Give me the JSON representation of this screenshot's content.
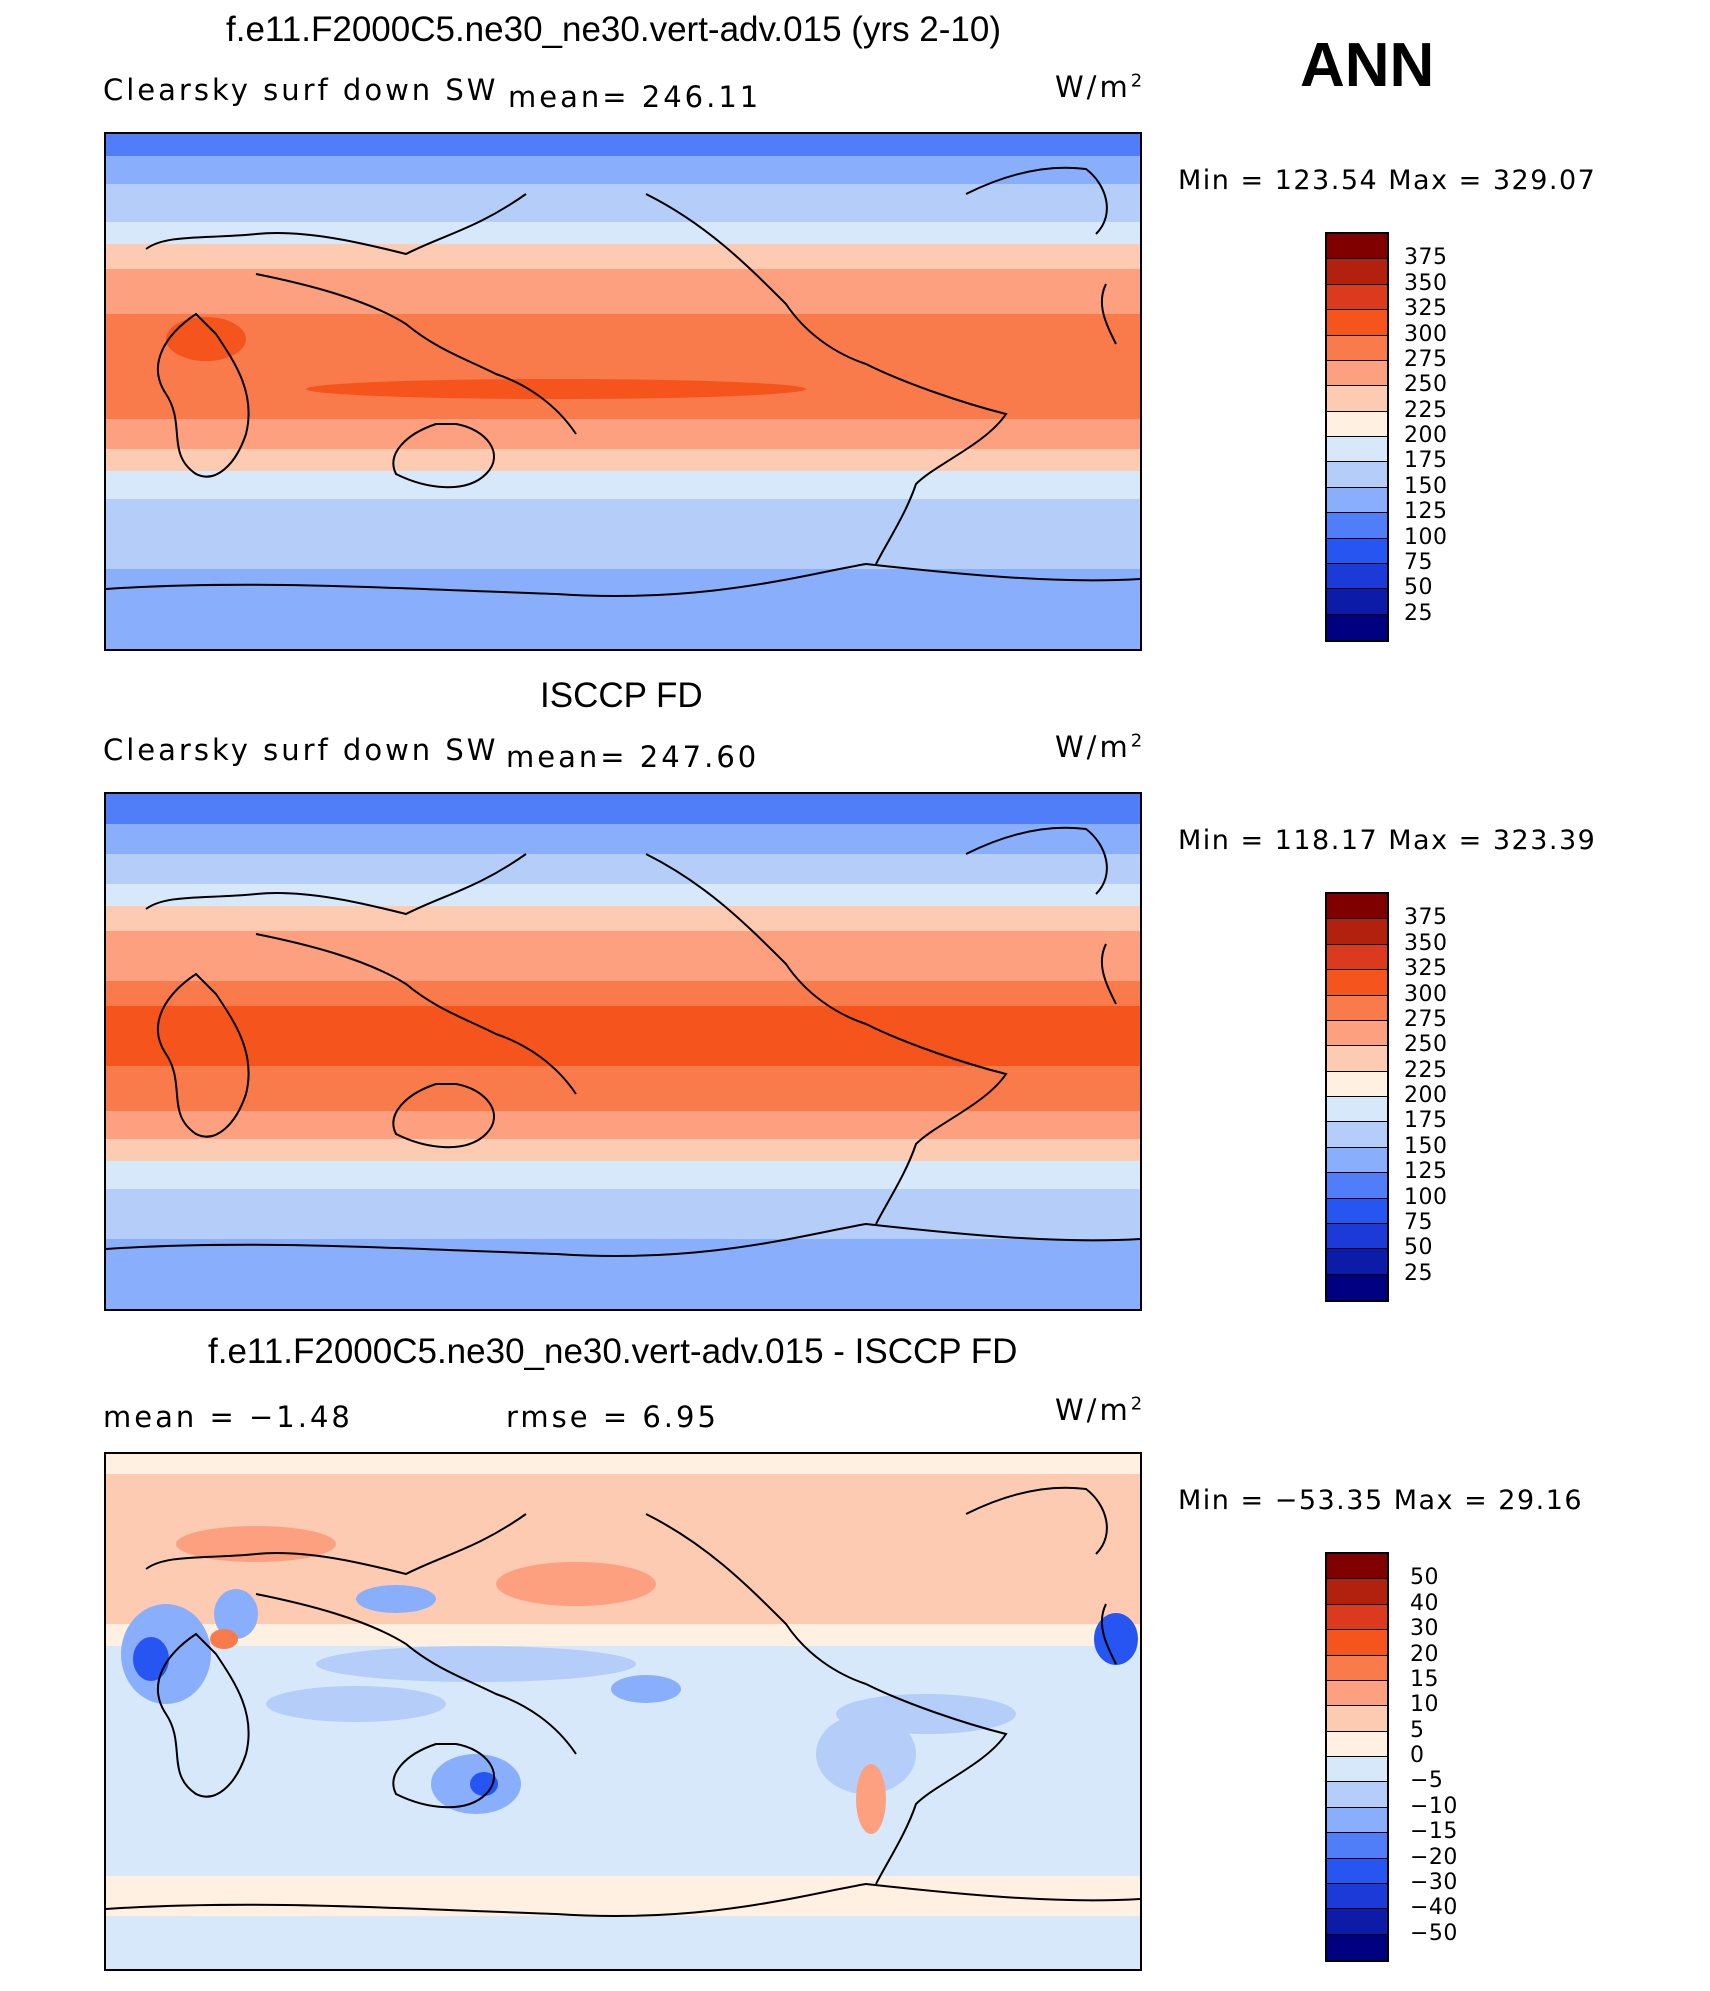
{
  "figure": {
    "season": "ANN"
  },
  "chart_data": [
    {
      "type": "heatmap",
      "title": "f.e11.F2000C5.ne30_ne30.vert-adv.015 (yrs 2-10)",
      "variable": "Clearsky surf down SW",
      "stat_text": "mean=  246.11",
      "units": "W/m",
      "units_sup": "2",
      "minmax_text": "Min  =  123.54  Max  =  329.07",
      "colorbar": {
        "levels": [
          "375",
          "350",
          "325",
          "300",
          "275",
          "250",
          "225",
          "200",
          "175",
          "150",
          "125",
          "100",
          "75",
          "50",
          "25"
        ],
        "colors": [
          "#800000",
          "#b2200e",
          "#dc3a1e",
          "#f5541d",
          "#f97b4c",
          "#fca07f",
          "#fdcbb1",
          "#fff0e1",
          "#d7e8fa",
          "#b4cdf9",
          "#89aefc",
          "#507ef8",
          "#2755f2",
          "#1c3ad8",
          "#0c1ca8",
          "#000080"
        ]
      }
    },
    {
      "type": "heatmap",
      "title": "ISCCP FD",
      "variable": "Clearsky surf down SW",
      "stat_text": "mean=  247.60",
      "units": "W/m",
      "units_sup": "2",
      "minmax_text": "Min  =  118.17  Max  =  323.39",
      "colorbar": {
        "levels": [
          "375",
          "350",
          "325",
          "300",
          "275",
          "250",
          "225",
          "200",
          "175",
          "150",
          "125",
          "100",
          "75",
          "50",
          "25"
        ],
        "colors": [
          "#800000",
          "#b2200e",
          "#dc3a1e",
          "#f5541d",
          "#f97b4c",
          "#fca07f",
          "#fdcbb1",
          "#fff0e1",
          "#d7e8fa",
          "#b4cdf9",
          "#89aefc",
          "#507ef8",
          "#2755f2",
          "#1c3ad8",
          "#0c1ca8",
          "#000080"
        ]
      }
    },
    {
      "type": "heatmap",
      "title": "f.e11.F2000C5.ne30_ne30.vert-adv.015 - ISCCP FD",
      "mean_text": "mean  =    −1.48",
      "rmse_text": "rmse  =     6.95",
      "units": "W/m",
      "units_sup": "2",
      "minmax_text": "Min  =  −53.35  Max  =    29.16",
      "colorbar": {
        "levels": [
          "50",
          "40",
          "30",
          "20",
          "15",
          "10",
          "5",
          "0",
          "−5",
          "−10",
          "−15",
          "−20",
          "−30",
          "−40",
          "−50"
        ],
        "colors": [
          "#800000",
          "#b2200e",
          "#dc3a1e",
          "#f5541d",
          "#f97b4c",
          "#fca07f",
          "#fdcbb1",
          "#fff0e1",
          "#d7e8fa",
          "#b4cdf9",
          "#89aefc",
          "#507ef8",
          "#2755f2",
          "#1c3ad8",
          "#0c1ca8",
          "#000080"
        ]
      }
    }
  ]
}
